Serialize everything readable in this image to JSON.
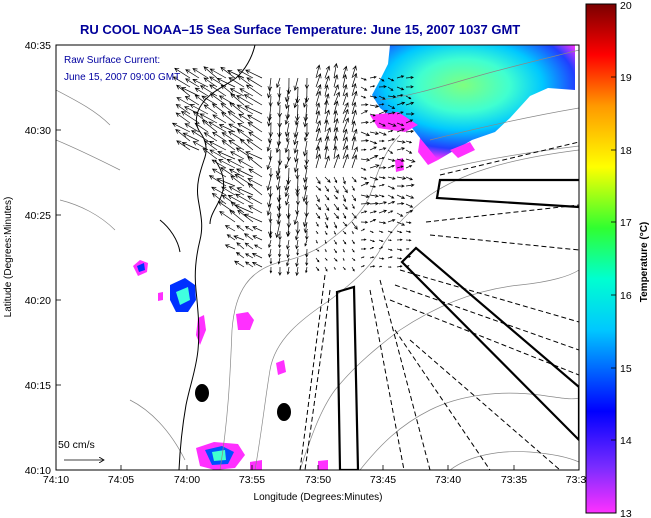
{
  "title": "RU COOL   NOAA–15  Sea Surface Temperature:  June 15, 2007 1037 GMT",
  "annotation": {
    "line1": "Raw Surface Current:",
    "line2": "June 15, 2007 09:00 GMT"
  },
  "scale_label": "50 cm/s",
  "axes": {
    "xlabel": "Longitude (Degrees:Minutes)",
    "ylabel": "Latitude (Degrees:Minutes)",
    "x_ticks": [
      "74:10",
      "74:05",
      "74:00",
      "73:55",
      "73:50",
      "73:45",
      "73:40",
      "73:35",
      "73:3"
    ],
    "y_ticks": [
      "40:35",
      "40:30",
      "40:25",
      "40:20",
      "40:15",
      "40:10"
    ]
  },
  "colorbar": {
    "label": "Temperature (°C)",
    "ticks": [
      "20",
      "19",
      "18",
      "17",
      "16",
      "15",
      "14",
      "13"
    ],
    "min": 13,
    "max": 20,
    "colors": [
      "#ff00ff",
      "#0000ff",
      "#00ffff",
      "#00ff00",
      "#ffff00",
      "#ffa500",
      "#ff0000",
      "#800000"
    ]
  }
}
